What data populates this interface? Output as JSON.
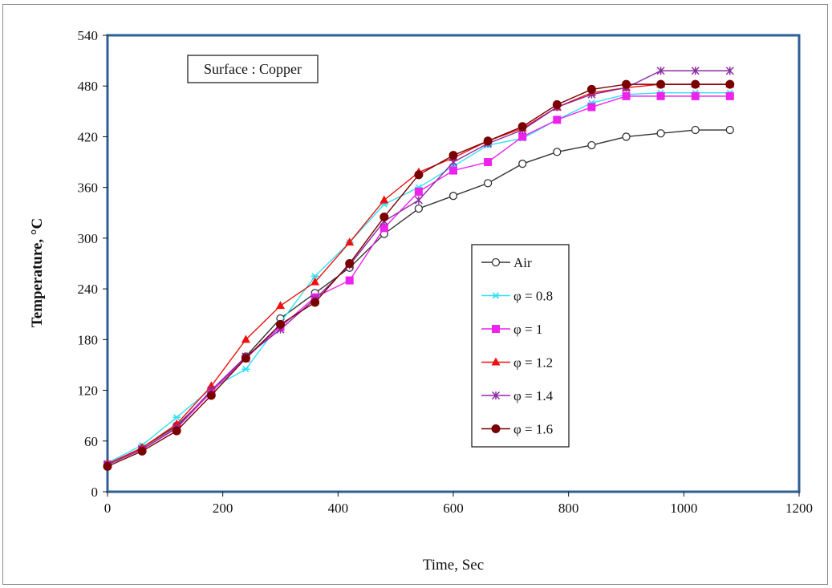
{
  "chart_data": {
    "type": "line",
    "title": "",
    "xlabel": "Time, Sec",
    "ylabel": "Temperature, °C",
    "xlim": [
      0,
      1200
    ],
    "ylim": [
      0,
      540
    ],
    "x_ticks": [
      0,
      200,
      400,
      600,
      800,
      1000,
      1200
    ],
    "y_ticks": [
      0,
      60,
      120,
      180,
      240,
      300,
      360,
      420,
      480,
      540
    ],
    "grid": false,
    "legend_position": "center-right",
    "annotation": "Surface : Copper",
    "x": [
      0,
      60,
      120,
      180,
      240,
      300,
      360,
      420,
      480,
      540,
      600,
      660,
      720,
      780,
      840,
      900,
      960,
      1020,
      1080
    ],
    "series": [
      {
        "name": "Air",
        "color": "#333333",
        "marker": "open-circle",
        "values": [
          32,
          52,
          78,
          118,
          160,
          205,
          235,
          265,
          305,
          335,
          350,
          365,
          388,
          402,
          410,
          420,
          424,
          428,
          428
        ]
      },
      {
        "name": "φ = 0.8",
        "color": "#33e0f0",
        "marker": "star",
        "values": [
          34,
          55,
          88,
          122,
          145,
          200,
          255,
          295,
          340,
          360,
          385,
          410,
          418,
          440,
          460,
          470,
          472,
          472,
          472
        ]
      },
      {
        "name": "φ = 1",
        "color": "#ee22ee",
        "marker": "square",
        "values": [
          32,
          50,
          75,
          118,
          158,
          195,
          230,
          250,
          312,
          355,
          380,
          390,
          420,
          440,
          455,
          468,
          468,
          468,
          468
        ]
      },
      {
        "name": "φ = 1.2",
        "color": "#ee1111",
        "marker": "triangle",
        "values": [
          33,
          52,
          80,
          125,
          180,
          220,
          248,
          295,
          345,
          378,
          395,
          415,
          430,
          455,
          472,
          478,
          482,
          482,
          482
        ]
      },
      {
        "name": "φ = 1.4",
        "color": "#8c2ba3",
        "marker": "asterisk",
        "values": [
          32,
          50,
          76,
          120,
          160,
          192,
          228,
          268,
          320,
          345,
          390,
          412,
          428,
          455,
          470,
          478,
          498,
          498,
          498
        ]
      },
      {
        "name": "φ = 1.6",
        "color": "#7a0000",
        "marker": "filled-circle",
        "values": [
          30,
          48,
          72,
          114,
          158,
          198,
          224,
          270,
          325,
          375,
          398,
          415,
          432,
          458,
          476,
          482,
          482,
          482,
          482
        ]
      }
    ]
  }
}
